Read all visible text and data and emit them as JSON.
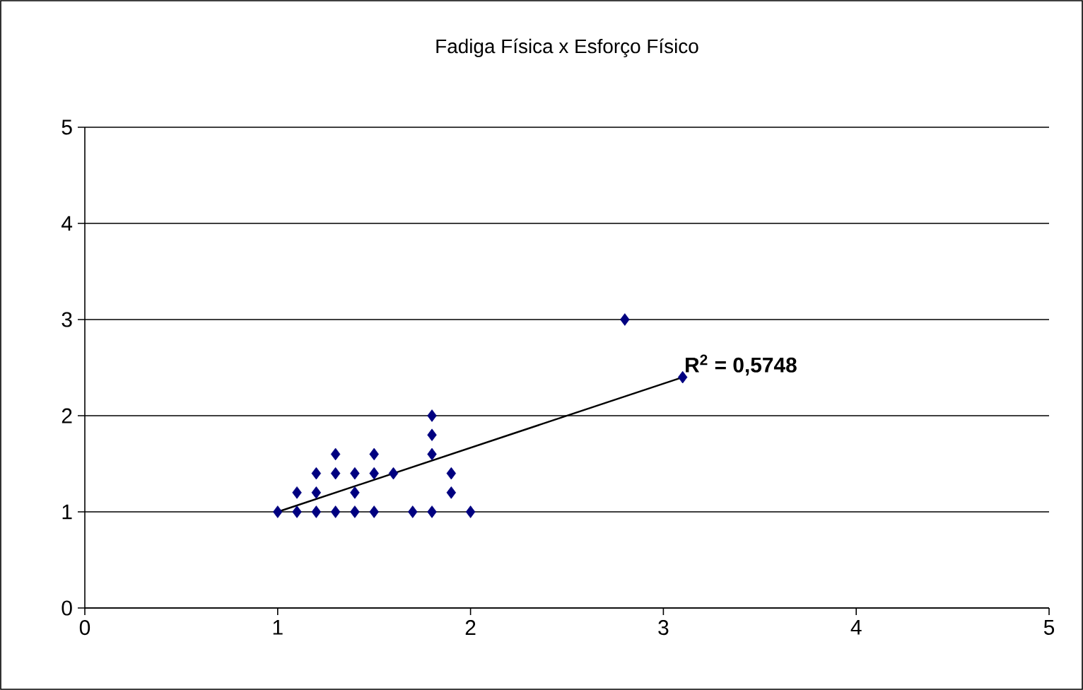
{
  "chart_data": {
    "type": "scatter",
    "title": "Fadiga Física x Esforço Físico",
    "xlim": [
      0,
      5
    ],
    "ylim": [
      0,
      5
    ],
    "xticks": [
      0,
      1,
      2,
      3,
      4,
      5
    ],
    "yticks": [
      0,
      1,
      2,
      3,
      4,
      5
    ],
    "grid": "y",
    "marker": "diamond",
    "series": [
      {
        "color": "#000080",
        "x": [
          1,
          1.1,
          1.2,
          1.3,
          1.4,
          1.5,
          1.7,
          1.8,
          2.0,
          1.1,
          1.2,
          1.4,
          1.9,
          1.2,
          1.3,
          1.4,
          1.5,
          1.6,
          1.9,
          1.3,
          1.5,
          1.8,
          1.8,
          1.8,
          2.8,
          3.1
        ],
        "values": [
          1,
          1,
          1,
          1,
          1,
          1,
          1,
          1,
          1,
          1.2,
          1.2,
          1.2,
          1.2,
          1.4,
          1.4,
          1.4,
          1.4,
          1.4,
          1.4,
          1.6,
          1.6,
          1.6,
          1.8,
          2,
          3,
          2.4
        ]
      },
      {
        "type": "line",
        "color": "#000000",
        "marker": "none",
        "x": [
          1,
          3.1
        ],
        "values": [
          1,
          2.4
        ]
      }
    ],
    "annotations": [
      {
        "text": "R$^{2}$ = 0,5748",
        "x": 3.1,
        "y": 2.4
      }
    ]
  }
}
